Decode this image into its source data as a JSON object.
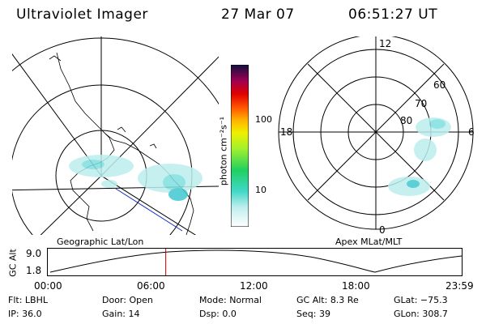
{
  "header": {
    "title": "Ultraviolet Imager",
    "date": "27 Mar 07",
    "time": "06:51:27 UT"
  },
  "colorbar": {
    "label": "photon cm⁻²s⁻¹",
    "ticks": [
      "100",
      "10"
    ]
  },
  "left_panel": {
    "caption": "Geographic Lat/Lon"
  },
  "right_panel": {
    "caption": "Apex MLat/MLT",
    "mlt_labels": {
      "top": "12",
      "left": "18",
      "right": "6",
      "bottom": "0"
    },
    "lat_labels": [
      "60",
      "70",
      "80"
    ]
  },
  "altitude_plot": {
    "ylabel": "GC Alt",
    "yticks": [
      "9.0",
      "1.8"
    ],
    "xticks": [
      "00:00",
      "06:00",
      "12:00",
      "18:00",
      "23:59"
    ],
    "current_time_fraction": 0.285
  },
  "info": {
    "row1": [
      {
        "label": "Flt:",
        "value": "LBHL"
      },
      {
        "label": "Door:",
        "value": "Open"
      },
      {
        "label": "Mode:",
        "value": "Normal"
      },
      {
        "label": "GC Alt:",
        "value": "8.3 Re"
      },
      {
        "label": "GLat:",
        "value": "−75.3"
      }
    ],
    "row2": [
      {
        "label": "IP:",
        "value": "36.0"
      },
      {
        "label": "Gain:",
        "value": "14"
      },
      {
        "label": "Dsp:",
        "value": "0.0"
      },
      {
        "label": "Seq:",
        "value": "39"
      },
      {
        "label": "GLon:",
        "value": "308.7"
      }
    ]
  },
  "colors": {
    "aurora": "#7fe0e0",
    "aurora_core": "#40c8d0",
    "line_blue": "#1030c0",
    "cursor_red": "#c00000"
  }
}
